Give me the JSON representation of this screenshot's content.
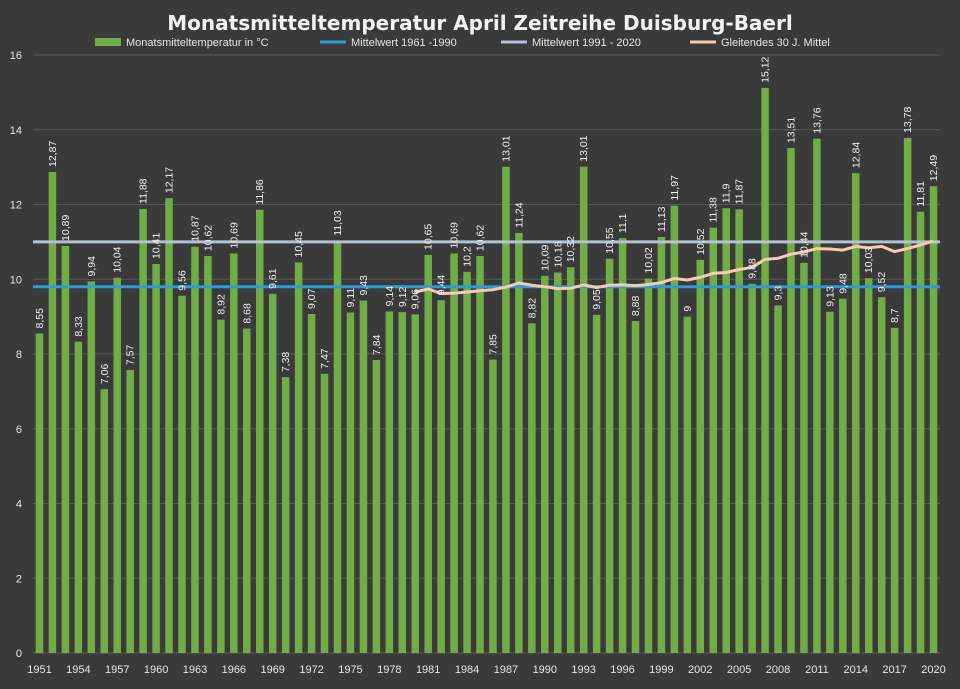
{
  "chart_data": {
    "type": "bar",
    "title": "Monatsmitteltemperatur April Zeitreihe Duisburg-Baerl",
    "xlabel": "",
    "ylabel": "",
    "ylim": [
      0,
      16
    ],
    "yticks": [
      "0",
      "2",
      "4",
      "6",
      "8",
      "10",
      "12",
      "14",
      "16"
    ],
    "grid": true,
    "legend_position": "top",
    "colors": {
      "background": "#3a3a3a",
      "bars": "#70ad47",
      "mean_1961_1990": "#2e9bd6",
      "mean_1991_2020": "#b4c0d4",
      "moving_average": "#f6cbb0",
      "grid": "#5a5a5a"
    },
    "x_tick_labels": [
      "1951",
      "1954",
      "1957",
      "1960",
      "1963",
      "1966",
      "1969",
      "1972",
      "1975",
      "1978",
      "1981",
      "1984",
      "1987",
      "1990",
      "1993",
      "1996",
      "1999",
      "2002",
      "2005",
      "2008",
      "2011",
      "2014",
      "2017",
      "2020"
    ],
    "years": [
      1951,
      1952,
      1953,
      1954,
      1955,
      1956,
      1957,
      1958,
      1959,
      1960,
      1961,
      1962,
      1963,
      1964,
      1965,
      1966,
      1967,
      1968,
      1969,
      1970,
      1971,
      1972,
      1973,
      1974,
      1975,
      1976,
      1977,
      1978,
      1979,
      1980,
      1981,
      1982,
      1983,
      1984,
      1985,
      1986,
      1987,
      1988,
      1989,
      1990,
      1991,
      1992,
      1993,
      1994,
      1995,
      1996,
      1997,
      1998,
      1999,
      2000,
      2001,
      2002,
      2003,
      2004,
      2005,
      2006,
      2007,
      2008,
      2009,
      2010,
      2011,
      2012,
      2013,
      2014,
      2015,
      2016,
      2017,
      2018,
      2019,
      2020
    ],
    "series": [
      {
        "name": "Monatsmitteltemperatur in °C",
        "type": "bar",
        "values": [
          8.55,
          12.87,
          10.89,
          8.33,
          9.94,
          7.06,
          10.04,
          7.57,
          11.88,
          10.41,
          12.17,
          9.56,
          10.87,
          10.62,
          8.92,
          10.69,
          8.68,
          11.86,
          9.61,
          7.38,
          10.45,
          9.07,
          7.47,
          11.03,
          9.11,
          9.43,
          7.84,
          9.14,
          9.12,
          9.06,
          10.65,
          9.44,
          10.69,
          10.2,
          10.62,
          7.85,
          13.01,
          11.24,
          8.82,
          10.09,
          10.18,
          10.32,
          13.01,
          9.05,
          10.55,
          11.1,
          8.88,
          10.02,
          11.13,
          11.97,
          9,
          10.52,
          11.38,
          11.9,
          11.87,
          9.88,
          15.12,
          9.3,
          13.51,
          10.44,
          13.76,
          9.13,
          9.48,
          12.84,
          10.03,
          9.52,
          8.7,
          13.78,
          11.81,
          12.49
        ],
        "labels": [
          "8,55",
          "12,87",
          "10,89",
          "8,33",
          "9,94",
          "7,06",
          "10,04",
          "7,57",
          "11,88",
          "10,41",
          "12,17",
          "9,56",
          "10,87",
          "10,62",
          "8,92",
          "10,69",
          "8,68",
          "11,86",
          "9,61",
          "7,38",
          "10,45",
          "9,07",
          "7,47",
          "11,03",
          "9,11",
          "9,43",
          "7,84",
          "9,14",
          "9,12",
          "9,06",
          "10,65",
          "9,44",
          "10,69",
          "10,2",
          "10,62",
          "7,85",
          "13,01",
          "11,24",
          "8,82",
          "10,09",
          "10,18",
          "10,32",
          "13,01",
          "9,05",
          "10,55",
          "11,1",
          "8,88",
          "10,02",
          "11,13",
          "11,97",
          "9",
          "10,52",
          "11,38",
          "11,9",
          "11,87",
          "9,88",
          "15,12",
          "9,3",
          "13,51",
          "10,44",
          "13,76",
          "9,13",
          "9,48",
          "12,84",
          "10,03",
          "9,52",
          "8,7",
          "13,78",
          "11,81",
          "12,49"
        ]
      },
      {
        "name": "Mittelwert 1961 -1990",
        "type": "line",
        "value": 9.8
      },
      {
        "name": "Mittelwert 1991 - 2020",
        "type": "line",
        "value": 11.0
      },
      {
        "name": "Gleitendes 30 J. Mittel",
        "type": "line",
        "x": [
          1980,
          1981,
          1982,
          1983,
          1984,
          1985,
          1986,
          1987,
          1988,
          1989,
          1990,
          1991,
          1992,
          1993,
          1994,
          1995,
          1996,
          1997,
          1998,
          1999,
          2000,
          2001,
          2002,
          2003,
          2004,
          2005,
          2006,
          2007,
          2008,
          2009,
          2010,
          2011,
          2012,
          2013,
          2014,
          2015,
          2016,
          2017,
          2018,
          2019,
          2020
        ],
        "values": [
          9.66,
          9.74,
          9.62,
          9.63,
          9.66,
          9.69,
          9.72,
          9.79,
          9.9,
          9.84,
          9.8,
          9.75,
          9.76,
          9.85,
          9.78,
          9.84,
          9.85,
          9.83,
          9.86,
          9.91,
          10.02,
          9.98,
          10.05,
          10.16,
          10.18,
          10.26,
          10.32,
          10.53,
          10.56,
          10.67,
          10.73,
          10.82,
          10.81,
          10.78,
          10.88,
          10.84,
          10.88,
          10.74,
          10.82,
          10.92,
          11.02
        ]
      }
    ]
  }
}
